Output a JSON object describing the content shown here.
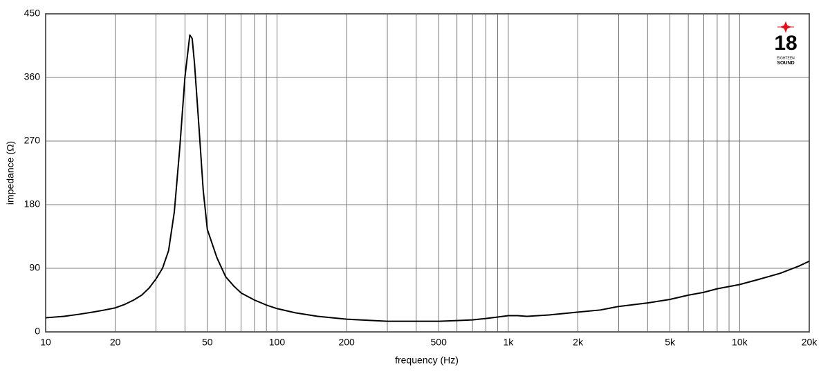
{
  "chart_data": {
    "type": "line",
    "x_label": "frequency (Hz)",
    "y_label": "impedance (Ω)",
    "x": [
      10,
      12,
      14,
      16,
      18,
      20,
      22,
      24,
      26,
      28,
      30,
      32,
      34,
      36,
      38,
      40,
      42,
      43,
      44,
      46,
      48,
      50,
      55,
      60,
      65,
      70,
      80,
      90,
      100,
      120,
      150,
      200,
      300,
      400,
      500,
      600,
      700,
      800,
      900,
      1000,
      1100,
      1200,
      1500,
      2000,
      2500,
      3000,
      4000,
      5000,
      6000,
      7000,
      8000,
      10000,
      12000,
      15000,
      18000,
      20000
    ],
    "values": [
      20,
      22,
      25,
      28,
      31,
      34,
      39,
      45,
      52,
      62,
      75,
      90,
      115,
      170,
      260,
      360,
      420,
      415,
      380,
      290,
      200,
      145,
      105,
      78,
      65,
      55,
      45,
      38,
      33,
      27,
      22,
      18,
      15,
      15,
      15,
      16,
      17,
      19,
      21,
      23,
      23,
      22,
      24,
      28,
      31,
      36,
      41,
      46,
      52,
      56,
      61,
      67,
      74,
      83,
      93,
      100
    ],
    "color": "#000000",
    "xlim": [
      10,
      20000
    ],
    "ylim": [
      0,
      450
    ],
    "log_x": true,
    "xticks": [
      10,
      20,
      50,
      100,
      200,
      500,
      {
        "value": 1000,
        "label": "1k"
      },
      {
        "value": 2000,
        "label": "2k"
      },
      {
        "value": 5000,
        "label": "5k"
      },
      {
        "value": 10000,
        "label": "10k"
      },
      {
        "value": 20000,
        "label": "20k"
      }
    ],
    "x_minor_grid": [
      30,
      40,
      60,
      70,
      80,
      90,
      300,
      400,
      600,
      700,
      800,
      900,
      3000,
      4000,
      6000,
      7000,
      8000,
      9000
    ],
    "yticks": [
      0,
      90,
      180,
      270,
      360,
      450
    ],
    "grid": true
  },
  "logo": {
    "number": "18",
    "line1": "EIGHTEEN",
    "line2": "SOUND"
  }
}
